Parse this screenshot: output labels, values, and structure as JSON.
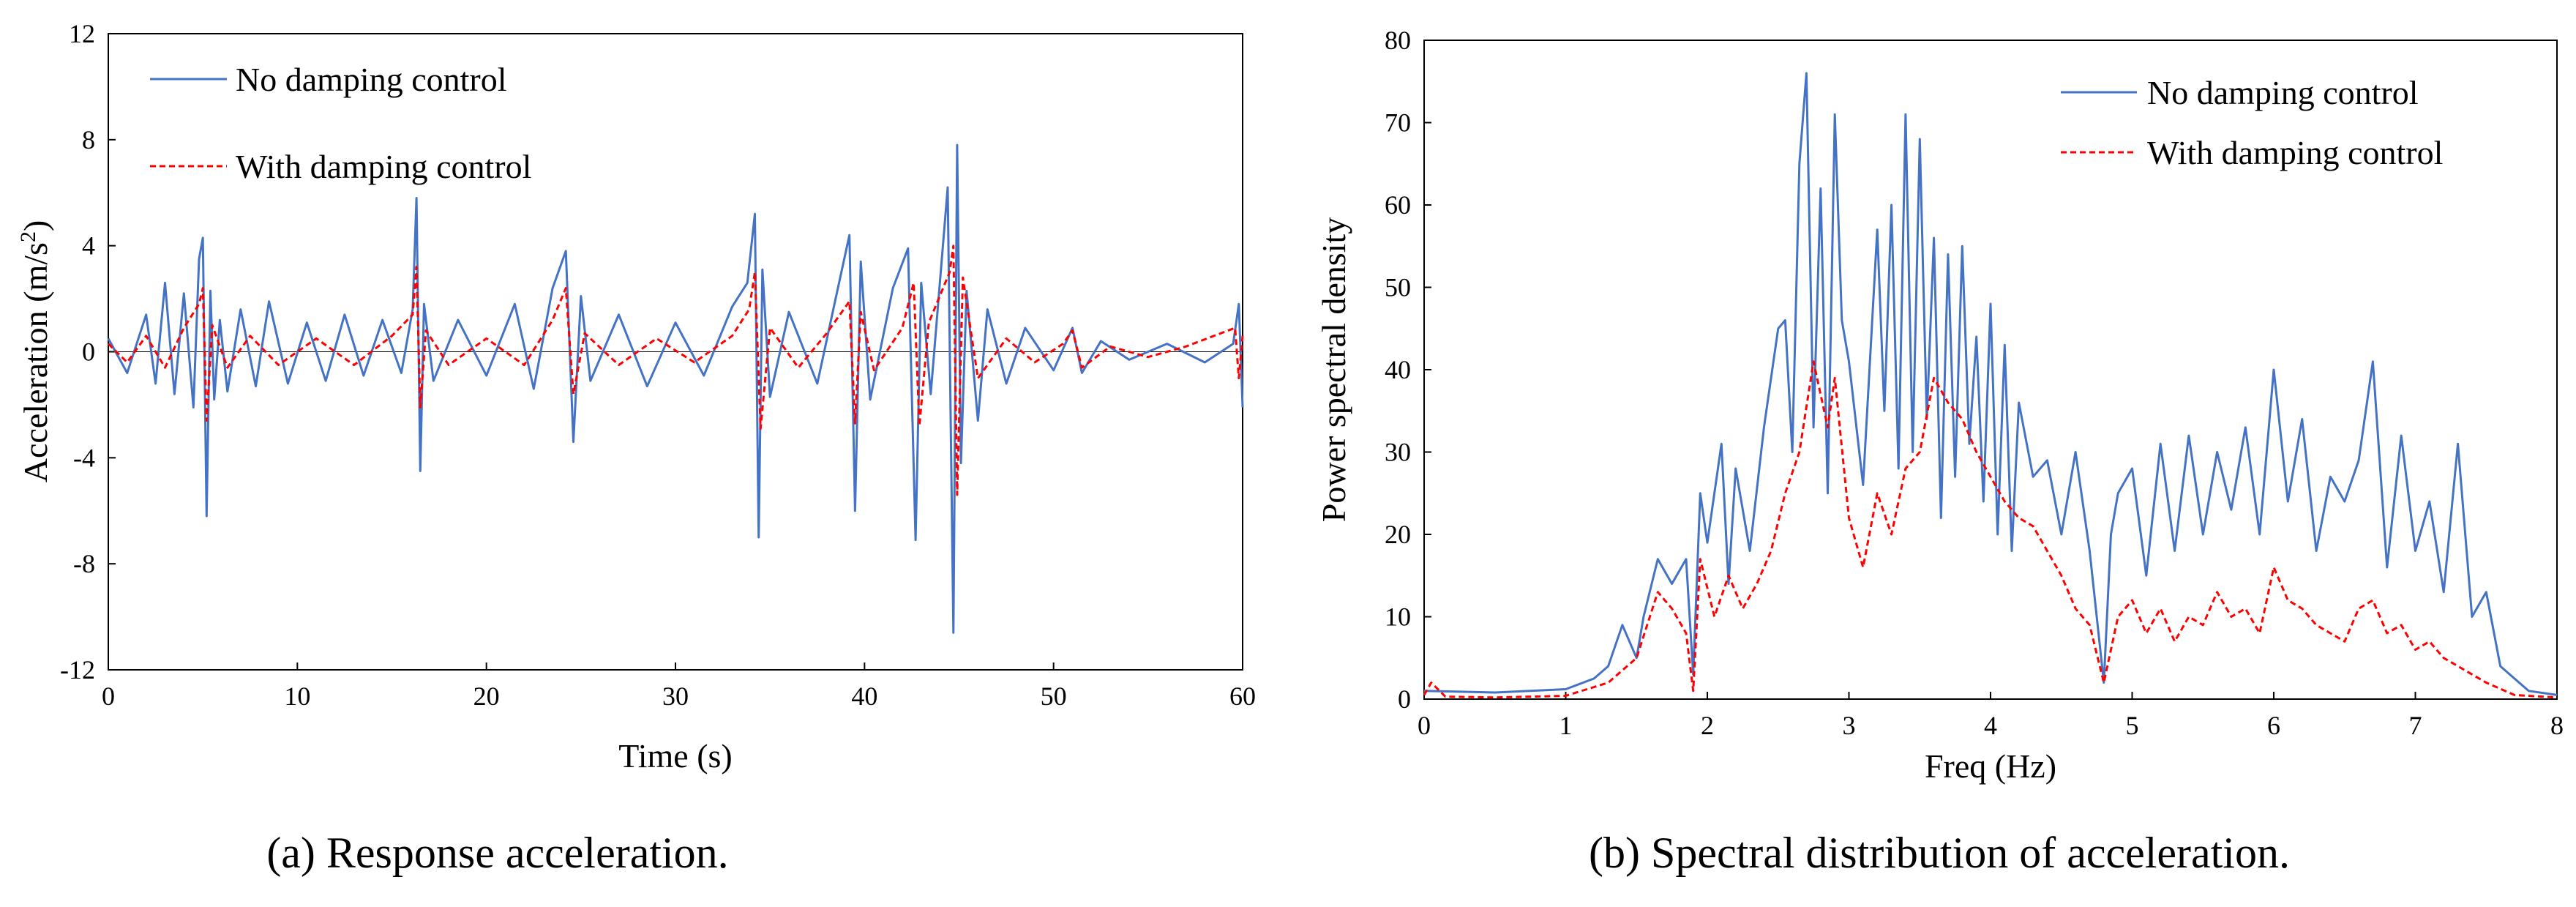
{
  "colors": {
    "no_damping": "#4472C4",
    "with_damping": "#FF0000"
  },
  "chart_data": [
    {
      "type": "line",
      "panel": "a",
      "caption": "(a) Response acceleration.",
      "xlabel": "Time (s)",
      "ylabel_main": "Acceleration (m/s",
      "ylabel_sup": "2",
      "ylabel_tail": ")",
      "xlim": [
        0,
        60
      ],
      "ylim": [
        -12,
        12
      ],
      "xticks": [
        0,
        10,
        20,
        30,
        40,
        50,
        60
      ],
      "yticks": [
        -12,
        -8,
        -4,
        0,
        4,
        8,
        12
      ],
      "legend_position": "top-left",
      "grid": false,
      "series": [
        {
          "name": "No damping control",
          "style": "solid",
          "x": [
            0,
            1,
            2,
            2.5,
            3,
            3.5,
            4,
            4.5,
            4.8,
            5.0,
            5.2,
            5.4,
            5.6,
            5.9,
            6.3,
            7,
            7.8,
            8.5,
            9.5,
            10.5,
            11.5,
            12.5,
            13.5,
            14.5,
            15.5,
            16.1,
            16.3,
            16.5,
            16.7,
            17.2,
            18.5,
            20,
            21.5,
            22.5,
            23.5,
            24.2,
            24.6,
            25,
            25.5,
            27,
            28.5,
            30,
            31.5,
            33,
            33.8,
            34.2,
            34.4,
            34.6,
            35,
            36,
            37.5,
            38.5,
            39.2,
            39.5,
            39.8,
            40.3,
            41.5,
            42.3,
            42.7,
            43,
            43.5,
            44.4,
            44.7,
            44.9,
            45.1,
            45.4,
            46,
            46.5,
            47.5,
            48.5,
            50,
            51,
            51.5,
            52.5,
            54,
            56,
            58,
            59.5,
            59.8,
            60
          ],
          "y": [
            0.5,
            -0.8,
            1.4,
            -1.2,
            2.6,
            -1.6,
            2.2,
            -2.1,
            3.5,
            4.3,
            -6.2,
            2.3,
            -1.8,
            1.2,
            -1.5,
            1.6,
            -1.3,
            1.9,
            -1.2,
            1.1,
            -1.1,
            1.4,
            -0.9,
            1.2,
            -0.8,
            1.6,
            5.8,
            -4.5,
            1.8,
            -1.1,
            1.2,
            -0.9,
            1.8,
            -1.4,
            2.4,
            3.8,
            -3.4,
            2.1,
            -1.1,
            1.4,
            -1.3,
            1.1,
            -0.9,
            1.7,
            2.6,
            5.2,
            -7.0,
            3.1,
            -1.7,
            1.5,
            -1.2,
            2.1,
            4.4,
            -6.0,
            3.4,
            -1.8,
            2.4,
            3.9,
            -7.1,
            2.6,
            -1.6,
            6.2,
            -10.6,
            7.8,
            -4.2,
            2.3,
            -2.6,
            1.6,
            -1.2,
            0.9,
            -0.7,
            0.9,
            -0.8,
            0.4,
            -0.3,
            0.3,
            -0.4,
            0.3,
            1.8,
            -2.1
          ]
        },
        {
          "name": "With damping control",
          "style": "dashed",
          "x": [
            0,
            1,
            2,
            3,
            4,
            4.8,
            5.0,
            5.2,
            5.5,
            6.3,
            7.5,
            9,
            11,
            13,
            15,
            16.1,
            16.3,
            16.5,
            16.8,
            18,
            20,
            22,
            23.5,
            24.2,
            24.6,
            25.2,
            27,
            29,
            31,
            33,
            33.9,
            34.2,
            34.5,
            35,
            36.5,
            38,
            39.2,
            39.5,
            39.8,
            40.5,
            42,
            42.6,
            42.9,
            43.4,
            44.5,
            44.7,
            44.9,
            45.2,
            46,
            47.5,
            49,
            50.5,
            51,
            51.5,
            53,
            55,
            57,
            59.6,
            59.8,
            60
          ],
          "y": [
            0.3,
            -0.4,
            0.6,
            -0.6,
            0.9,
            1.8,
            2.4,
            -2.6,
            1.0,
            -0.6,
            0.6,
            -0.5,
            0.5,
            -0.5,
            0.6,
            1.4,
            3.2,
            -2.1,
            0.8,
            -0.5,
            0.5,
            -0.5,
            1.2,
            2.4,
            -1.6,
            0.7,
            -0.5,
            0.5,
            -0.4,
            0.6,
            1.6,
            3.0,
            -2.9,
            0.9,
            -0.6,
            0.7,
            1.9,
            -2.7,
            1.5,
            -0.7,
            0.9,
            2.6,
            -2.8,
            1.1,
            3.0,
            4.0,
            -5.4,
            2.8,
            -1.0,
            0.5,
            -0.4,
            0.3,
            0.8,
            -0.6,
            0.2,
            -0.2,
            0.2,
            0.9,
            -1.0,
            0.6
          ]
        }
      ]
    },
    {
      "type": "line",
      "panel": "b",
      "caption": "(b) Spectral distribution of acceleration.",
      "xlabel": "Freq (Hz)",
      "ylabel": "Power spectral density",
      "xlim": [
        0,
        8
      ],
      "ylim": [
        0,
        80
      ],
      "xticks": [
        0,
        1,
        2,
        3,
        4,
        5,
        6,
        7,
        8
      ],
      "yticks": [
        0,
        10,
        20,
        30,
        40,
        50,
        60,
        70,
        80
      ],
      "legend_position": "top-right",
      "grid": false,
      "series": [
        {
          "name": "No damping control",
          "style": "solid",
          "x": [
            0,
            0.5,
            1.0,
            1.2,
            1.3,
            1.4,
            1.5,
            1.55,
            1.65,
            1.75,
            1.85,
            1.9,
            1.95,
            2.0,
            2.1,
            2.15,
            2.2,
            2.3,
            2.4,
            2.5,
            2.55,
            2.6,
            2.65,
            2.7,
            2.75,
            2.8,
            2.85,
            2.9,
            2.95,
            3.0,
            3.1,
            3.2,
            3.25,
            3.3,
            3.35,
            3.4,
            3.45,
            3.5,
            3.55,
            3.6,
            3.65,
            3.7,
            3.75,
            3.8,
            3.85,
            3.9,
            3.95,
            4.0,
            4.05,
            4.1,
            4.15,
            4.2,
            4.3,
            4.4,
            4.5,
            4.6,
            4.7,
            4.8,
            4.85,
            4.9,
            5.0,
            5.1,
            5.2,
            5.3,
            5.4,
            5.5,
            5.6,
            5.7,
            5.8,
            5.9,
            6.0,
            6.1,
            6.2,
            6.3,
            6.4,
            6.5,
            6.6,
            6.7,
            6.8,
            6.9,
            7.0,
            7.1,
            7.2,
            7.3,
            7.4,
            7.5,
            7.6,
            7.8,
            8.0
          ],
          "y": [
            1,
            0.8,
            1.2,
            2.5,
            4,
            9,
            5,
            10,
            17,
            14,
            17,
            3,
            25,
            19,
            31,
            14,
            28,
            18,
            33,
            45,
            46,
            30,
            65,
            76,
            33,
            62,
            25,
            71,
            46,
            41,
            26,
            57,
            35,
            60,
            28,
            71,
            30,
            68,
            34,
            56,
            22,
            54,
            27,
            55,
            31,
            44,
            24,
            48,
            20,
            43,
            18,
            36,
            27,
            29,
            20,
            30,
            18,
            2,
            20,
            25,
            28,
            15,
            31,
            18,
            32,
            20,
            30,
            23,
            33,
            20,
            40,
            24,
            34,
            18,
            27,
            24,
            29,
            41,
            16,
            32,
            18,
            24,
            13,
            31,
            10,
            13,
            4,
            1,
            0.5
          ]
        },
        {
          "name": "With damping control",
          "style": "dashed",
          "x": [
            0,
            0.05,
            0.15,
            0.5,
            1.0,
            1.3,
            1.5,
            1.65,
            1.75,
            1.85,
            1.9,
            1.95,
            2.05,
            2.15,
            2.25,
            2.35,
            2.45,
            2.55,
            2.65,
            2.75,
            2.85,
            2.9,
            3.0,
            3.1,
            3.2,
            3.3,
            3.4,
            3.5,
            3.6,
            3.7,
            3.8,
            3.9,
            4.0,
            4.1,
            4.2,
            4.3,
            4.4,
            4.5,
            4.6,
            4.7,
            4.8,
            4.9,
            5.0,
            5.1,
            5.2,
            5.3,
            5.4,
            5.5,
            5.6,
            5.7,
            5.8,
            5.9,
            6.0,
            6.1,
            6.2,
            6.3,
            6.4,
            6.5,
            6.6,
            6.7,
            6.8,
            6.9,
            7.0,
            7.1,
            7.2,
            7.3,
            7.5,
            7.7,
            8.0
          ],
          "y": [
            0.5,
            2,
            0.3,
            0.2,
            0.4,
            2,
            5,
            13,
            11,
            8,
            1,
            17,
            10,
            15,
            11,
            14,
            18,
            25,
            30,
            41,
            33,
            39,
            22,
            16,
            25,
            20,
            28,
            30,
            39,
            36,
            34,
            30,
            27,
            24,
            22,
            21,
            18,
            15,
            11,
            9,
            2,
            10,
            12,
            8,
            11,
            7,
            10,
            9,
            13,
            10,
            11,
            8,
            16,
            12,
            11,
            9,
            8,
            7,
            11,
            12,
            8,
            9,
            6,
            7,
            5,
            4,
            2,
            0.5,
            0.2
          ]
        }
      ]
    }
  ]
}
